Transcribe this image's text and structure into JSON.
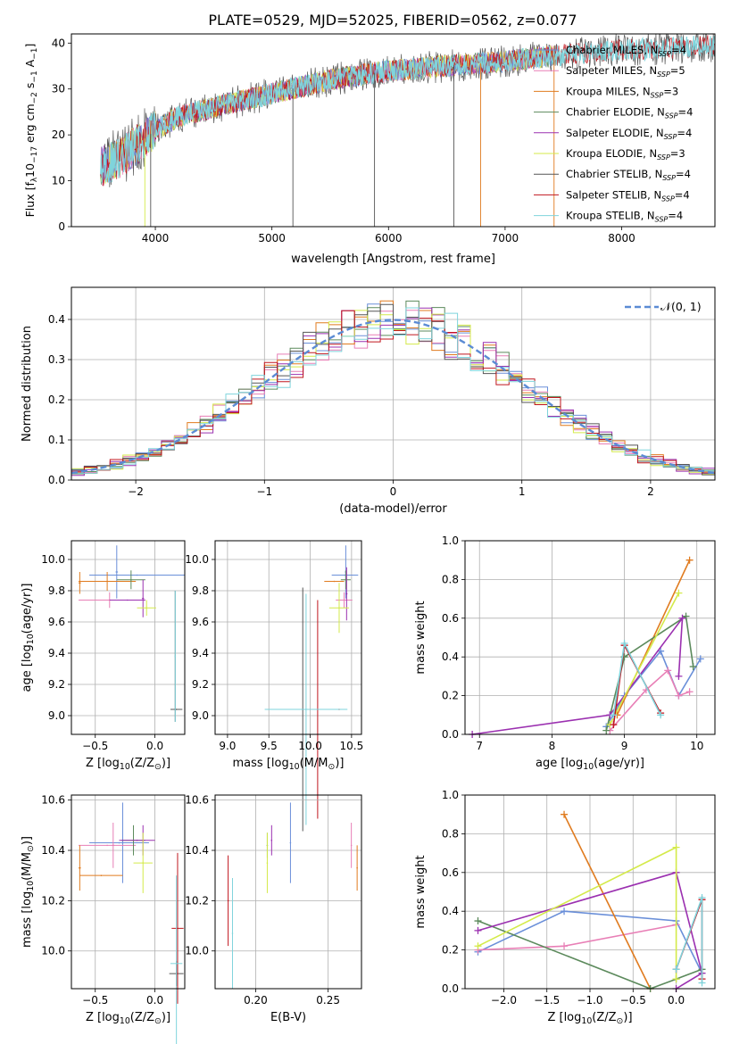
{
  "figure_title": "PLATE=0529, MJD=52025, FIBERID=0562, z=0.077",
  "chart_data": [
    {
      "id": "spectrum",
      "type": "line",
      "xlabel": "wavelength [Angstrom, rest frame]",
      "ylabel_parts": [
        "Flux [f",
        "λ",
        "10",
        "−17",
        " erg cm",
        "−2",
        " s",
        "−1",
        " A",
        "−1",
        "]"
      ],
      "xlim": [
        3280,
        8800
      ],
      "ylim": [
        0,
        42
      ],
      "xticks": [
        4000,
        5000,
        6000,
        7000,
        8000
      ],
      "xtick_labels": [
        "4000",
        "5000",
        "6000",
        "7000",
        "8000"
      ],
      "yticks": [
        0,
        10,
        20,
        30,
        40
      ],
      "ytick_labels": [
        "0",
        "10",
        "20",
        "30",
        "40"
      ],
      "grid": false,
      "legend_position": "right",
      "spectrum_anchor_points": [
        [
          3530,
          13
        ],
        [
          3700,
          15
        ],
        [
          3850,
          18
        ],
        [
          4000,
          21
        ],
        [
          4200,
          24
        ],
        [
          4500,
          26
        ],
        [
          5000,
          29
        ],
        [
          5500,
          32
        ],
        [
          6000,
          34
        ],
        [
          6500,
          35
        ],
        [
          7000,
          36
        ],
        [
          7500,
          37.5
        ],
        [
          8000,
          38.5
        ],
        [
          8500,
          39
        ],
        [
          8800,
          39.5
        ]
      ],
      "series": [
        {
          "label_main": "Chabrier MILES, N",
          "label_sub": "SSP",
          "label_tail": "=4",
          "color": "#6a8fd9"
        },
        {
          "label_main": "Salpeter MILES, N",
          "label_sub": "SSP",
          "label_tail": "=5",
          "color": "#e87fb6"
        },
        {
          "label_main": "Kroupa MILES, N",
          "label_sub": "SSP",
          "label_tail": "=3",
          "color": "#e07b1f"
        },
        {
          "label_main": "Chabrier ELODIE, N",
          "label_sub": "SSP",
          "label_tail": "=4",
          "color": "#5c8a5c"
        },
        {
          "label_main": "Salpeter ELODIE, N",
          "label_sub": "SSP",
          "label_tail": "=4",
          "color": "#9b30b0"
        },
        {
          "label_main": "Kroupa ELODIE, N",
          "label_sub": "SSP",
          "label_tail": "=3",
          "color": "#d4ea4a"
        },
        {
          "label_main": "Chabrier STELIB, N",
          "label_sub": "SSP",
          "label_tail": "=4",
          "color": "#555555"
        },
        {
          "label_main": "Salpeter STELIB, N",
          "label_sub": "SSP",
          "label_tail": "=4",
          "color": "#c0161e"
        },
        {
          "label_main": "Kroupa STELIB, N",
          "label_sub": "SSP",
          "label_tail": "=4",
          "color": "#7fd4dc"
        }
      ]
    },
    {
      "id": "residuals",
      "type": "bar",
      "xlabel": "(data-model)/error",
      "ylabel": "Normed distribution",
      "xlim": [
        -2.5,
        2.5
      ],
      "ylim": [
        0,
        0.48
      ],
      "xticks": [
        -2,
        -1,
        0,
        1,
        2
      ],
      "xtick_labels": [
        "−2",
        "−1",
        "0",
        "1",
        "2"
      ],
      "yticks": [
        0,
        0.1,
        0.2,
        0.3,
        0.4
      ],
      "ytick_labels": [
        "0.0",
        "0.1",
        "0.2",
        "0.3",
        "0.4"
      ],
      "grid": true,
      "legend_position": "top-right",
      "legend_label": "𝒩(0, 1)",
      "normal_curve": {
        "mu": 0,
        "sigma": 1,
        "color": "#5b8bd4"
      },
      "bin_width": 0.1,
      "bin_start": -2.5,
      "series_colors": [
        "#6a8fd9",
        "#e87fb6",
        "#e07b1f",
        "#5c8a5c",
        "#9b30b0",
        "#d4ea4a",
        "#555555",
        "#c0161e",
        "#7fd4dc"
      ]
    },
    {
      "id": "age-vs-Z",
      "type": "scatter",
      "xlabel_parts": [
        "Z [log",
        "10",
        "(Z/Z",
        "⊙",
        ")]"
      ],
      "ylabel_parts": [
        "age  [log",
        "10",
        "(age/yr)]"
      ],
      "xlim": [
        -0.7,
        0.25
      ],
      "ylim": [
        8.88,
        10.12
      ],
      "xticks": [
        -0.5,
        0.0
      ],
      "xtick_labels": [
        "−0.5",
        "0.0"
      ],
      "yticks": [
        9.0,
        9.2,
        9.4,
        9.6,
        9.8,
        10.0
      ],
      "ytick_labels": [
        "9.0",
        "9.2",
        "9.4",
        "9.6",
        "9.8",
        "10.0"
      ],
      "grid": true,
      "points": [
        {
          "x": -0.15,
          "y": 9.9,
          "xerr": 0.4,
          "yerr": 0.0,
          "color": "#6a8fd9"
        },
        {
          "x": -0.32,
          "y": 9.92,
          "xerr": 0.01,
          "yerr": 0.17,
          "color": "#6a8fd9"
        },
        {
          "x": -0.38,
          "y": 9.74,
          "xerr": 0.26,
          "yerr": 0.05,
          "color": "#e87fb6"
        },
        {
          "x": -0.4,
          "y": 9.86,
          "xerr": 0.24,
          "yerr": 0.06,
          "color": "#e07b1f"
        },
        {
          "x": -0.63,
          "y": 9.85,
          "xerr": 0.01,
          "yerr": 0.07,
          "color": "#e07b1f"
        },
        {
          "x": -0.2,
          "y": 9.87,
          "xerr": 0.12,
          "yerr": 0.06,
          "color": "#5c8a5c"
        },
        {
          "x": -0.23,
          "y": 9.74,
          "xerr": 0.15,
          "yerr": 0.0,
          "color": "#9b30b0"
        },
        {
          "x": -0.1,
          "y": 9.75,
          "xerr": 0.01,
          "yerr": 0.12,
          "color": "#9b30b0"
        },
        {
          "x": -0.07,
          "y": 9.69,
          "xerr": 0.08,
          "yerr": 0.05,
          "color": "#d4ea4a"
        },
        {
          "x": 0.18,
          "y": 9.04,
          "xerr": 0.05,
          "yerr": 0.0,
          "color": "#555555"
        },
        {
          "x": 0.17,
          "y": 9.38,
          "xerr": 0.0,
          "yerr": 0.42,
          "color": "#555555"
        },
        {
          "x": 0.17,
          "y": 9.38,
          "xerr": 0.0,
          "yerr": 0.42,
          "color": "#7fd4dc"
        }
      ]
    },
    {
      "id": "age-vs-mass",
      "type": "scatter",
      "xlabel_parts": [
        "mass [log",
        "10",
        "(M/M",
        "⊙",
        ")]"
      ],
      "ylabel_parts": [],
      "xlim": [
        8.85,
        10.62
      ],
      "ylim": [
        8.88,
        10.12
      ],
      "xticks": [
        9.0,
        9.5,
        10.0,
        10.5
      ],
      "xtick_labels": [
        "9.0",
        "9.5",
        "10.0",
        "10.5"
      ],
      "yticks": [
        9.0,
        9.2,
        9.4,
        9.6,
        9.8,
        10.0
      ],
      "ytick_labels": [
        "9.0",
        "9.2",
        "9.4",
        "9.6",
        "9.8",
        "10.0"
      ],
      "grid": true,
      "points": [
        {
          "x": 10.42,
          "y": 9.9,
          "xerr": 0.16,
          "yerr": 0.0,
          "color": "#6a8fd9"
        },
        {
          "x": 10.43,
          "y": 9.92,
          "xerr": 0.01,
          "yerr": 0.17,
          "color": "#6a8fd9"
        },
        {
          "x": 10.41,
          "y": 9.74,
          "xerr": 0.1,
          "yerr": 0.05,
          "color": "#e87fb6"
        },
        {
          "x": 10.29,
          "y": 9.86,
          "xerr": 0.12,
          "yerr": 0.0,
          "color": "#e07b1f"
        },
        {
          "x": 10.43,
          "y": 9.87,
          "xerr": 0.06,
          "yerr": 0.06,
          "color": "#5c8a5c"
        },
        {
          "x": 10.44,
          "y": 9.78,
          "xerr": 0.01,
          "yerr": 0.17,
          "color": "#9b30b0"
        },
        {
          "x": 10.35,
          "y": 9.69,
          "xerr": 0.12,
          "yerr": 0.16,
          "color": "#d4ea4a"
        },
        {
          "x": 9.91,
          "y": 9.04,
          "xerr": 0.0,
          "yerr": 0.78,
          "color": "#555555"
        },
        {
          "x": 10.09,
          "y": 9.04,
          "xerr": 0.0,
          "yerr": 0.7,
          "color": "#c0161e"
        },
        {
          "x": 9.95,
          "y": 9.04,
          "xerr": 0.0,
          "yerr": 0.74,
          "color": "#7fd4dc"
        },
        {
          "x": 10.35,
          "y": 9.04,
          "xerr": 0.05,
          "yerr": 0.0,
          "color": "#c0161e"
        },
        {
          "x": 9.95,
          "y": 9.04,
          "xerr": 0.5,
          "yerr": 0.0,
          "color": "#7fd4dc"
        }
      ]
    },
    {
      "id": "massweight-vs-age",
      "type": "line",
      "xlabel_parts": [
        "age  [log",
        "10",
        "(age/yr)]"
      ],
      "ylabel": "mass weight",
      "xlim": [
        6.8,
        10.25
      ],
      "ylim": [
        0,
        1.0
      ],
      "xticks": [
        7,
        8,
        9,
        10
      ],
      "xtick_labels": [
        "7",
        "8",
        "9",
        "10"
      ],
      "yticks": [
        0.0,
        0.2,
        0.4,
        0.6,
        0.8,
        1.0
      ],
      "ytick_labels": [
        "0.0",
        "0.2",
        "0.4",
        "0.6",
        "0.8",
        "1.0"
      ],
      "grid": true,
      "series": [
        {
          "color": "#6a8fd9",
          "x": [
            8.75,
            9.0,
            9.5,
            9.75,
            10.05
          ],
          "y": [
            0.04,
            0.2,
            0.43,
            0.2,
            0.39
          ]
        },
        {
          "color": "#e87fb6",
          "x": [
            8.8,
            9.3,
            9.6,
            9.75,
            9.9
          ],
          "y": [
            0.02,
            0.23,
            0.33,
            0.2,
            0.22
          ]
        },
        {
          "color": "#e07b1f",
          "x": [
            8.9,
            9.9
          ],
          "y": [
            0.1,
            0.9
          ]
        },
        {
          "color": "#5c8a5c",
          "x": [
            8.75,
            9.0,
            9.85,
            9.95
          ],
          "y": [
            0.02,
            0.4,
            0.61,
            0.35
          ]
        },
        {
          "color": "#9b30b0",
          "x": [
            6.9,
            8.8,
            9.8,
            9.75
          ],
          "y": [
            0.0,
            0.1,
            0.6,
            0.3
          ]
        },
        {
          "color": "#d4ea4a",
          "x": [
            8.8,
            9.75
          ],
          "y": [
            0.05,
            0.73
          ]
        },
        {
          "color": "#c0161e",
          "x": [
            8.85,
            9.0,
            9.5
          ],
          "y": [
            0.05,
            0.46,
            0.11
          ]
        },
        {
          "color": "#7fd4dc",
          "x": [
            8.85,
            9.0,
            9.5
          ],
          "y": [
            0.1,
            0.47,
            0.1
          ]
        }
      ]
    },
    {
      "id": "mass-vs-Z",
      "type": "scatter",
      "xlabel_parts": [
        "Z [log",
        "10",
        "(Z/Z",
        "⊙",
        ")]"
      ],
      "ylabel_parts": [
        "mass [log",
        "10",
        "(M/M",
        "⊙",
        ")]"
      ],
      "xlim": [
        -0.7,
        0.25
      ],
      "ylim": [
        9.85,
        10.62
      ],
      "xticks": [
        -0.5,
        0.0
      ],
      "xtick_labels": [
        "−0.5",
        "0.0"
      ],
      "yticks": [
        10.0,
        10.2,
        10.4,
        10.6
      ],
      "ytick_labels": [
        "10.0",
        "10.2",
        "10.4",
        "10.6"
      ],
      "grid": true,
      "points": [
        {
          "x": -0.3,
          "y": 10.43,
          "xerr": 0.25,
          "yerr": 0.0,
          "color": "#6a8fd9"
        },
        {
          "x": -0.27,
          "y": 10.43,
          "xerr": 0.01,
          "yerr": 0.16,
          "color": "#6a8fd9"
        },
        {
          "x": -0.4,
          "y": 10.42,
          "xerr": 0.24,
          "yerr": 0.0,
          "color": "#e87fb6"
        },
        {
          "x": -0.35,
          "y": 10.42,
          "xerr": 0.01,
          "yerr": 0.09,
          "color": "#e87fb6"
        },
        {
          "x": -0.45,
          "y": 10.3,
          "xerr": 0.18,
          "yerr": 0.0,
          "color": "#e07b1f"
        },
        {
          "x": -0.63,
          "y": 10.33,
          "xerr": 0.01,
          "yerr": 0.09,
          "color": "#e07b1f"
        },
        {
          "x": -0.18,
          "y": 10.44,
          "xerr": 0.1,
          "yerr": 0.06,
          "color": "#5c8a5c"
        },
        {
          "x": -0.15,
          "y": 10.44,
          "xerr": 0.15,
          "yerr": 0.0,
          "color": "#9b30b0"
        },
        {
          "x": -0.1,
          "y": 10.44,
          "xerr": 0.01,
          "yerr": 0.06,
          "color": "#9b30b0"
        },
        {
          "x": -0.1,
          "y": 10.35,
          "xerr": 0.08,
          "yerr": 0.12,
          "color": "#d4ea4a"
        },
        {
          "x": 0.18,
          "y": 9.91,
          "xerr": 0.06,
          "yerr": 0.05,
          "color": "#555555"
        },
        {
          "x": 0.19,
          "y": 10.09,
          "xerr": 0.05,
          "yerr": 0.3,
          "color": "#c0161e"
        },
        {
          "x": 0.18,
          "y": 9.95,
          "xerr": 0.05,
          "yerr": 0.35,
          "color": "#7fd4dc"
        }
      ]
    },
    {
      "id": "mass-vs-ebv",
      "type": "scatter",
      "xlabel": "E(B-V)",
      "ylabel_parts": [],
      "xlim": [
        0.172,
        0.273
      ],
      "ylim": [
        9.85,
        10.62
      ],
      "xticks": [
        0.2,
        0.25
      ],
      "xtick_labels": [
        "0.20",
        "0.25"
      ],
      "yticks": [
        10.0,
        10.2,
        10.4,
        10.6
      ],
      "ytick_labels": [
        "10.0",
        "10.2",
        "10.4",
        "10.6"
      ],
      "grid": true,
      "points": [
        {
          "x": 0.224,
          "y": 10.43,
          "xerr": 0.0,
          "yerr": 0.16,
          "color": "#6a8fd9"
        },
        {
          "x": 0.266,
          "y": 10.42,
          "xerr": 0.0,
          "yerr": 0.09,
          "color": "#e87fb6"
        },
        {
          "x": 0.27,
          "y": 10.33,
          "xerr": 0.0,
          "yerr": 0.09,
          "color": "#e07b1f"
        },
        {
          "x": 0.208,
          "y": 10.42,
          "xerr": 0.0,
          "yerr": 0.05,
          "color": "#5c8a5c"
        },
        {
          "x": 0.211,
          "y": 10.44,
          "xerr": 0.0,
          "yerr": 0.06,
          "color": "#9b30b0"
        },
        {
          "x": 0.208,
          "y": 10.35,
          "xerr": 0.0,
          "yerr": 0.12,
          "color": "#d4ea4a"
        },
        {
          "x": 0.181,
          "y": 10.2,
          "xerr": 0.0,
          "yerr": 0.18,
          "color": "#c0161e"
        },
        {
          "x": 0.184,
          "y": 10.07,
          "xerr": 0.0,
          "yerr": 0.22,
          "color": "#7fd4dc"
        }
      ]
    },
    {
      "id": "massweight-vs-Z",
      "type": "line",
      "xlabel_parts": [
        "Z [log",
        "10",
        "(Z/Z",
        "⊙",
        ")]"
      ],
      "ylabel": "mass weight",
      "xlim": [
        -2.45,
        0.45
      ],
      "ylim": [
        0,
        1.0
      ],
      "xticks": [
        -2.0,
        -1.5,
        -1.0,
        -0.5,
        0.0
      ],
      "xtick_labels": [
        "−2.0",
        "−1.5",
        "−1.0",
        "−0.5",
        "0.0"
      ],
      "yticks": [
        0.0,
        0.2,
        0.4,
        0.6,
        0.8,
        1.0
      ],
      "ytick_labels": [
        "0.0",
        "0.2",
        "0.4",
        "0.6",
        "0.8",
        "1.0"
      ],
      "grid": true,
      "series": [
        {
          "color": "#6a8fd9",
          "x": [
            -2.3,
            -1.3,
            0.0,
            0.3
          ],
          "y": [
            0.19,
            0.4,
            0.35,
            0.08
          ]
        },
        {
          "color": "#e87fb6",
          "x": [
            -2.3,
            -1.3,
            0.0
          ],
          "y": [
            0.2,
            0.22,
            0.33
          ]
        },
        {
          "color": "#e07b1f",
          "x": [
            -1.3,
            -0.3
          ],
          "y": [
            0.9,
            0.0
          ]
        },
        {
          "color": "#5c8a5c",
          "x": [
            -2.3,
            -0.3,
            0.0,
            0.3
          ],
          "y": [
            0.35,
            0.0,
            0.05,
            0.1
          ]
        },
        {
          "color": "#9b30b0",
          "x": [
            -2.3,
            0.0,
            0.3,
            0.0
          ],
          "y": [
            0.3,
            0.6,
            0.08,
            0.0
          ]
        },
        {
          "color": "#d4ea4a",
          "x": [
            -2.3,
            0.0,
            0.0
          ],
          "y": [
            0.22,
            0.73,
            0.05
          ]
        },
        {
          "color": "#c0161e",
          "x": [
            0.0,
            0.3,
            0.3
          ],
          "y": [
            0.1,
            0.46,
            0.05
          ]
        },
        {
          "color": "#7fd4dc",
          "x": [
            0.0,
            0.3,
            0.3
          ],
          "y": [
            0.1,
            0.47,
            0.03
          ]
        }
      ]
    }
  ]
}
